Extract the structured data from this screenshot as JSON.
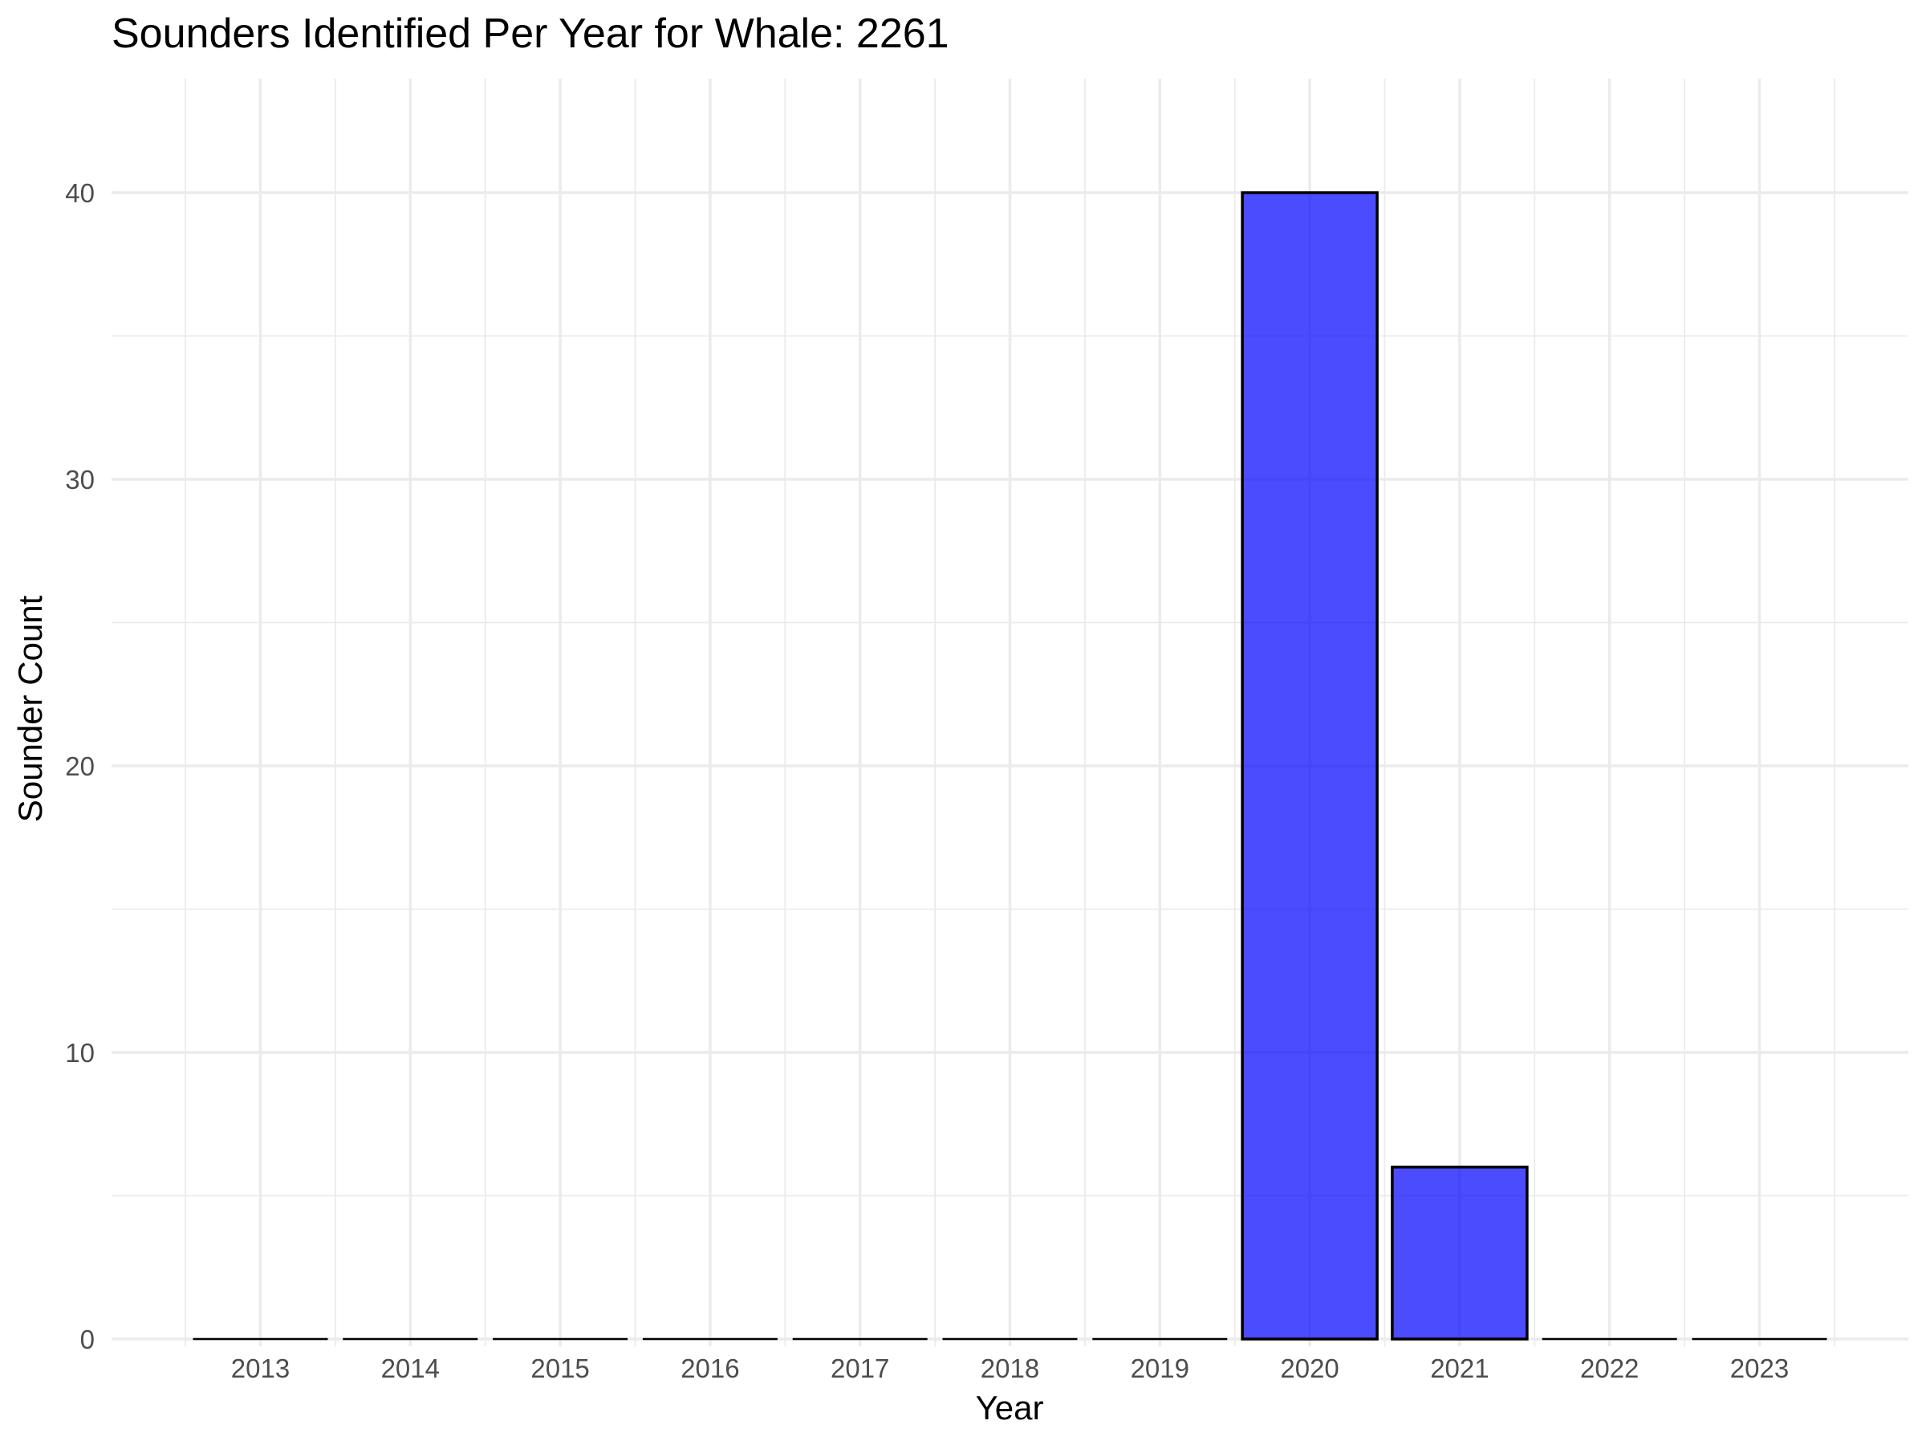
{
  "chart_data": {
    "type": "bar",
    "title": "Sounders Identified Per Year for Whale: 2261",
    "xlabel": "Year",
    "ylabel": "Sounder Count",
    "categories": [
      "2013",
      "2014",
      "2015",
      "2016",
      "2017",
      "2018",
      "2019",
      "2020",
      "2021",
      "2022",
      "2023"
    ],
    "values": [
      0,
      0,
      0,
      0,
      0,
      0,
      0,
      40,
      6,
      0,
      0
    ],
    "ylim": [
      0,
      44
    ],
    "yticks": [
      0,
      10,
      20,
      30,
      40
    ],
    "grid": true,
    "bar_color": "#0000ff",
    "bar_opacity": 0.7,
    "bar_outline": "#000000",
    "grid_color": "#ebebeb"
  }
}
